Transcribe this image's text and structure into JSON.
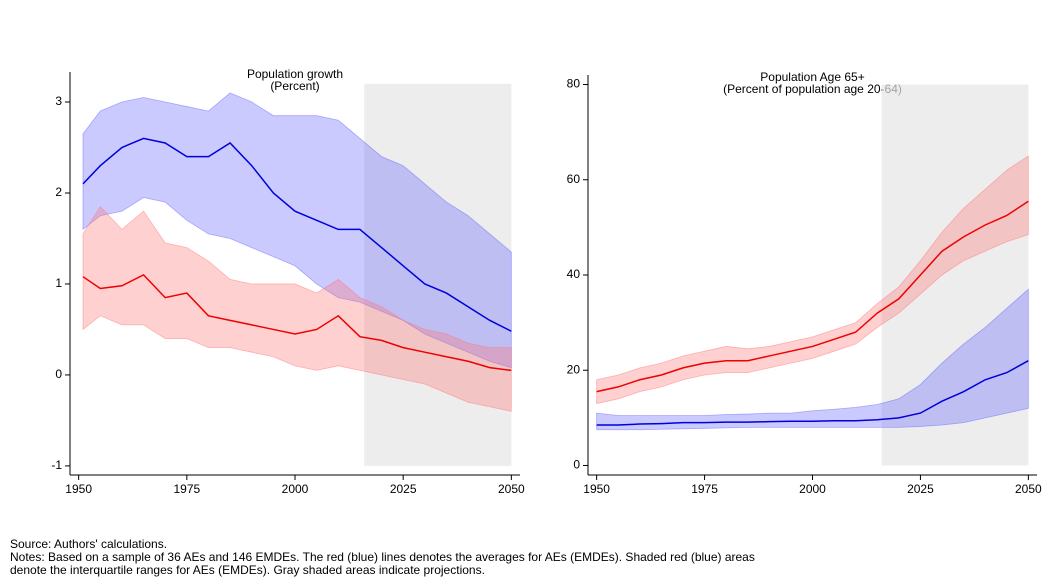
{
  "chart_data": [
    {
      "type": "line",
      "title": "Population growth",
      "subtitle": "(Percent)",
      "x": [
        1951,
        1955,
        1960,
        1965,
        1970,
        1975,
        1980,
        1985,
        1990,
        1995,
        2000,
        2005,
        2010,
        2015,
        2020,
        2025,
        2030,
        2035,
        2040,
        2045,
        2050
      ],
      "xlim": [
        1948,
        2052
      ],
      "xticks": [
        1950,
        1975,
        2000,
        2025,
        2050
      ],
      "ylim": [
        -1.1,
        3.33
      ],
      "yticks": [
        -1,
        0,
        1,
        2,
        3
      ],
      "projection": {
        "x": [
          2016,
          2050
        ],
        "y": [
          -1,
          3.2
        ],
        "color": "#e6e6e6"
      },
      "series": [
        {
          "color": "#0000dd",
          "band_color": "#6666ff",
          "values": [
            2.1,
            2.3,
            2.5,
            2.6,
            2.55,
            2.4,
            2.4,
            2.55,
            2.3,
            2.0,
            1.8,
            1.7,
            1.6,
            1.6,
            1.4,
            1.2,
            1.0,
            0.9,
            0.75,
            0.6,
            0.48
          ],
          "upper": [
            2.65,
            2.9,
            3.0,
            3.05,
            3.0,
            2.95,
            2.9,
            3.1,
            3.0,
            2.85,
            2.85,
            2.85,
            2.8,
            2.6,
            2.4,
            2.3,
            2.1,
            1.9,
            1.75,
            1.55,
            1.35
          ],
          "lower": [
            1.6,
            1.75,
            1.8,
            1.95,
            1.9,
            1.7,
            1.55,
            1.5,
            1.4,
            1.3,
            1.2,
            1.0,
            0.85,
            0.8,
            0.7,
            0.6,
            0.45,
            0.35,
            0.25,
            0.15,
            0.08
          ]
        },
        {
          "color": "#ee0000",
          "band_color": "#ff7777",
          "values": [
            1.08,
            0.95,
            0.98,
            1.1,
            0.85,
            0.9,
            0.65,
            0.6,
            0.55,
            0.5,
            0.45,
            0.5,
            0.65,
            0.42,
            0.38,
            0.3,
            0.25,
            0.2,
            0.15,
            0.08,
            0.05
          ],
          "upper": [
            1.55,
            1.85,
            1.6,
            1.8,
            1.45,
            1.4,
            1.25,
            1.05,
            1.0,
            1.0,
            1.0,
            0.9,
            1.05,
            0.85,
            0.75,
            0.6,
            0.5,
            0.45,
            0.35,
            0.3,
            0.3
          ],
          "lower": [
            0.5,
            0.65,
            0.55,
            0.55,
            0.4,
            0.4,
            0.3,
            0.3,
            0.25,
            0.2,
            0.1,
            0.05,
            0.1,
            0.05,
            0.0,
            -0.05,
            -0.1,
            -0.2,
            -0.3,
            -0.35,
            -0.4
          ]
        }
      ]
    },
    {
      "type": "line",
      "title": "Population Age 65+",
      "subtitle": "(Percent of population age 20-64)",
      "x": [
        1950,
        1955,
        1960,
        1965,
        1970,
        1975,
        1980,
        1985,
        1990,
        1995,
        2000,
        2005,
        2010,
        2015,
        2020,
        2025,
        2030,
        2035,
        2040,
        2045,
        2050
      ],
      "xlim": [
        1948,
        2052
      ],
      "xticks": [
        1950,
        1975,
        2000,
        2025,
        2050
      ],
      "ylim": [
        -2,
        82
      ],
      "yticks": [
        0,
        20,
        40,
        60,
        80
      ],
      "projection": {
        "x": [
          2016,
          2050
        ],
        "y": [
          0,
          80
        ],
        "color": "#e6e6e6"
      },
      "series": [
        {
          "color": "#ee0000",
          "band_color": "#ff7777",
          "values": [
            15.5,
            16.5,
            18,
            19,
            20.5,
            21.5,
            22,
            22,
            23,
            24,
            25,
            26.5,
            28,
            32,
            35,
            40,
            45,
            48,
            50.5,
            52.5,
            55.5
          ],
          "upper": [
            18,
            19,
            20.5,
            21.5,
            23,
            24,
            25,
            24.5,
            25,
            26,
            27,
            28.5,
            30,
            34,
            37.5,
            43,
            49,
            54,
            58,
            62,
            65
          ],
          "lower": [
            13,
            14,
            15.5,
            16.5,
            18,
            19,
            19.5,
            19.5,
            20.5,
            21.5,
            22.5,
            24,
            25.5,
            29,
            32,
            36,
            40,
            43,
            45,
            47,
            48.5
          ]
        },
        {
          "color": "#0000dd",
          "band_color": "#6666ff",
          "values": [
            8.5,
            8.5,
            8.7,
            8.8,
            9,
            9,
            9.1,
            9.1,
            9.2,
            9.3,
            9.3,
            9.4,
            9.4,
            9.6,
            10,
            11,
            13.5,
            15.5,
            18,
            19.5,
            22
          ],
          "upper": [
            11,
            10.5,
            10.5,
            10.5,
            10.5,
            10.5,
            10.7,
            10.8,
            11,
            11,
            11.5,
            11.8,
            12.2,
            12.8,
            14,
            17,
            21.5,
            25.5,
            29,
            33,
            37
          ],
          "lower": [
            7.5,
            7.5,
            7.5,
            7.6,
            7.7,
            7.8,
            7.9,
            8,
            8,
            8,
            8,
            8,
            8,
            8,
            8,
            8.2,
            8.5,
            9,
            10,
            11,
            12
          ]
        }
      ]
    }
  ],
  "notes": [
    "Source: Authors' calculations.",
    "Notes: Based on a sample of 36 AEs and 146 EMDEs. The red (blue) lines denotes the averages for AEs (EMDEs). Shaded red (blue) areas",
    "denote the interquartile ranges for AEs (EMDEs). Gray shaded areas indicate projections."
  ]
}
